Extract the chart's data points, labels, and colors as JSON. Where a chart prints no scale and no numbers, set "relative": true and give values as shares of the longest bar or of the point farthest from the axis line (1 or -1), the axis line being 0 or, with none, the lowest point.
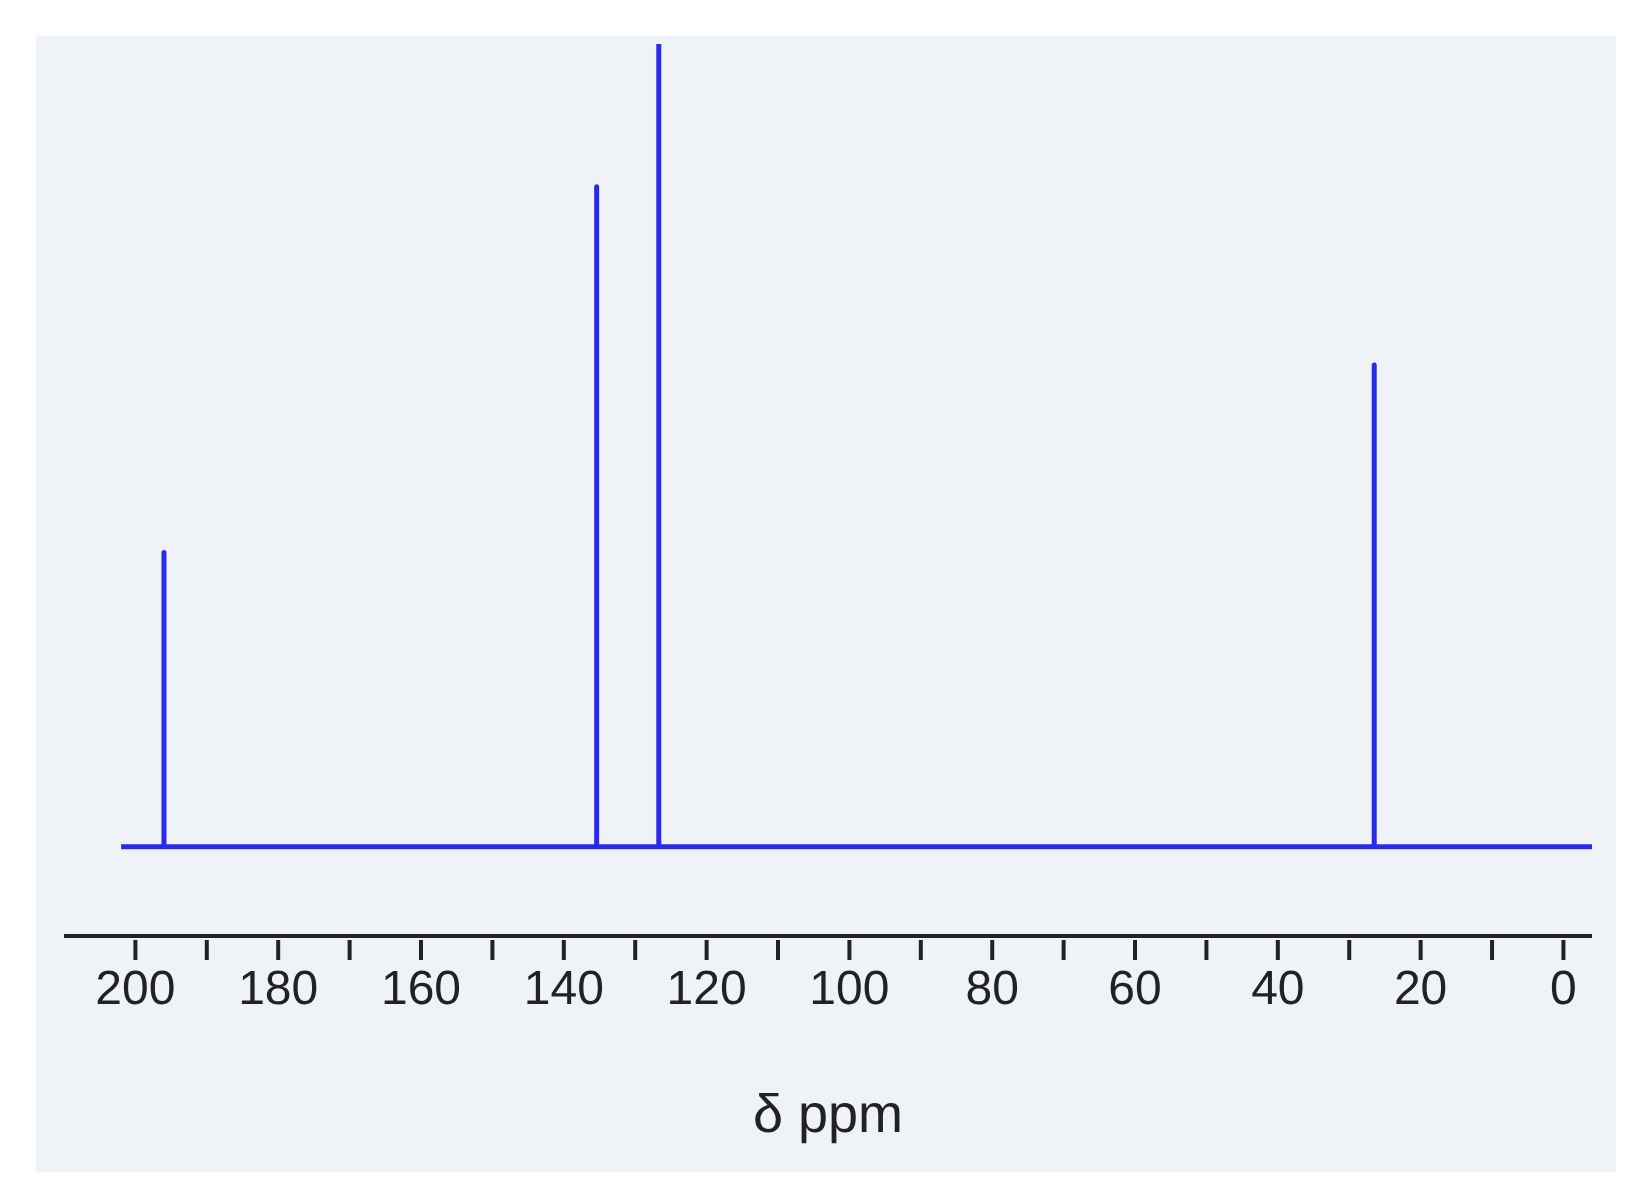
{
  "chart_data": {
    "type": "line",
    "xlabel": "δ ppm",
    "relative": true,
    "xlim": [
      210,
      -4
    ],
    "xticks": [
      200,
      {
        "value": 190,
        "label": null
      },
      180,
      {
        "value": 170,
        "label": null
      },
      160,
      {
        "value": 150,
        "label": null
      },
      140,
      {
        "value": 130,
        "label": null
      },
      120,
      {
        "value": 110,
        "label": null
      },
      100,
      {
        "value": 90,
        "label": null
      },
      80,
      {
        "value": 70,
        "label": null
      },
      60,
      {
        "value": 50,
        "label": null
      },
      40,
      {
        "value": 30,
        "label": null
      },
      20,
      {
        "value": 10,
        "label": null
      },
      0
    ],
    "x": [
      202,
      196,
      196,
      196,
      135.4,
      135.4,
      135.4,
      126.7,
      126.7,
      126.7,
      26.5,
      26.5,
      26.5,
      -4
    ],
    "series": [
      {
        "color": "#2a2aee",
        "values": [
          0.1,
          0.1,
          0.43,
          0.1,
          0.1,
          0.84,
          0.1,
          0.1,
          1,
          0.1,
          0.1,
          0.64,
          0.1,
          0.1
        ]
      }
    ],
    "grid": false,
    "marker": "none",
    "line_style": "solid"
  }
}
